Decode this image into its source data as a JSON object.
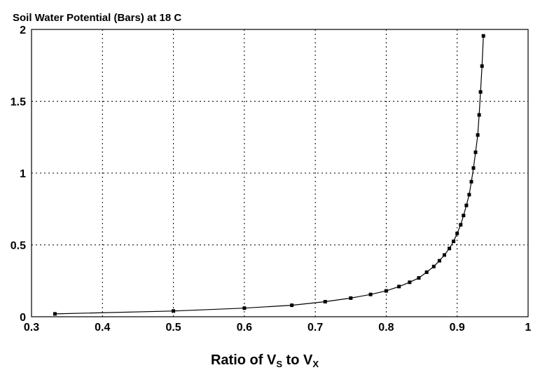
{
  "chart_data": {
    "type": "line",
    "title": "Soil Water Potential (Bars) at 18 C",
    "xlabel": {
      "prefix": "Ratio of V",
      "sub1": "S",
      "middle": " to V",
      "sub2": "X"
    },
    "ylabel": "",
    "xlim": [
      0.3,
      1
    ],
    "ylim": [
      0,
      2
    ],
    "x_ticks": [
      "0.3",
      "0.4",
      "0.5",
      "0.6",
      "0.7",
      "0.8",
      "0.9",
      "1"
    ],
    "y_ticks": [
      "0",
      "0.5",
      "1",
      "1.5",
      "2"
    ],
    "grid": true,
    "grid_style": "dotted",
    "marker": "square",
    "series": [
      {
        "x": [
          0.333,
          0.5,
          0.6,
          0.667,
          0.714,
          0.75,
          0.778,
          0.8,
          0.818,
          0.833,
          0.846,
          0.857,
          0.867,
          0.875,
          0.882,
          0.889,
          0.895,
          0.9,
          0.905,
          0.909,
          0.913,
          0.917,
          0.92,
          0.923,
          0.926,
          0.929,
          0.931,
          0.933,
          0.935,
          0.937
        ],
        "y": [
          0.02,
          0.04,
          0.06,
          0.08,
          0.105,
          0.13,
          0.155,
          0.18,
          0.21,
          0.24,
          0.27,
          0.31,
          0.35,
          0.39,
          0.43,
          0.475,
          0.525,
          0.58,
          0.64,
          0.705,
          0.775,
          0.85,
          0.94,
          1.035,
          1.145,
          1.265,
          1.405,
          1.565,
          1.745,
          1.955
        ]
      }
    ],
    "colors": {
      "line": "#000000",
      "grid": "#000000",
      "frame": "#000000",
      "background": "#ffffff"
    }
  }
}
